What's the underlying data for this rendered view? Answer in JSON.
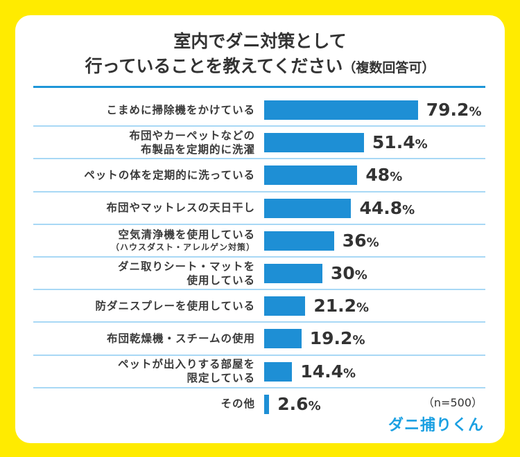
{
  "title": {
    "line1": "室内でダニ対策として",
    "line2": "行っていることを教えてください",
    "note": "（複数回答可）"
  },
  "sample_size": "（n=500）",
  "logo_text": "ダニ捕りくん",
  "colors": {
    "background": "#FFEB00",
    "bar": "#1E8FD5",
    "rule": "#1E96D8",
    "separator": "#A8D8F5",
    "logo": "#1BA0E2"
  },
  "chart_data": {
    "type": "bar",
    "orientation": "horizontal",
    "unit": "%",
    "categories": [
      {
        "lines": [
          "こまめに掃除機をかけている"
        ]
      },
      {
        "lines": [
          "布団やカーペットなどの",
          "布製品を定期的に洗濯"
        ]
      },
      {
        "lines": [
          "ペットの体を定期的に洗っている"
        ]
      },
      {
        "lines": [
          "布団やマットレスの天日干し"
        ]
      },
      {
        "lines": [
          "空気清浄機を使用している"
        ],
        "small": "（ハウスダスト・アレルゲン対策）"
      },
      {
        "lines": [
          "ダニ取りシート・マットを",
          "使用している"
        ]
      },
      {
        "lines": [
          "防ダニスプレーを使用している"
        ]
      },
      {
        "lines": [
          "布団乾燥機・スチームの使用"
        ]
      },
      {
        "lines": [
          "ペットが出入りする部屋を",
          "限定している"
        ]
      },
      {
        "lines": [
          "その他"
        ]
      }
    ],
    "values": [
      79.2,
      51.4,
      48,
      44.8,
      36,
      30,
      21.2,
      19.2,
      14.4,
      2.6
    ],
    "value_labels": [
      "79.2",
      "51.4",
      "48",
      "44.8",
      "36",
      "30",
      "21.2",
      "19.2",
      "14.4",
      "2.6"
    ],
    "xlim": [
      0,
      100
    ]
  }
}
